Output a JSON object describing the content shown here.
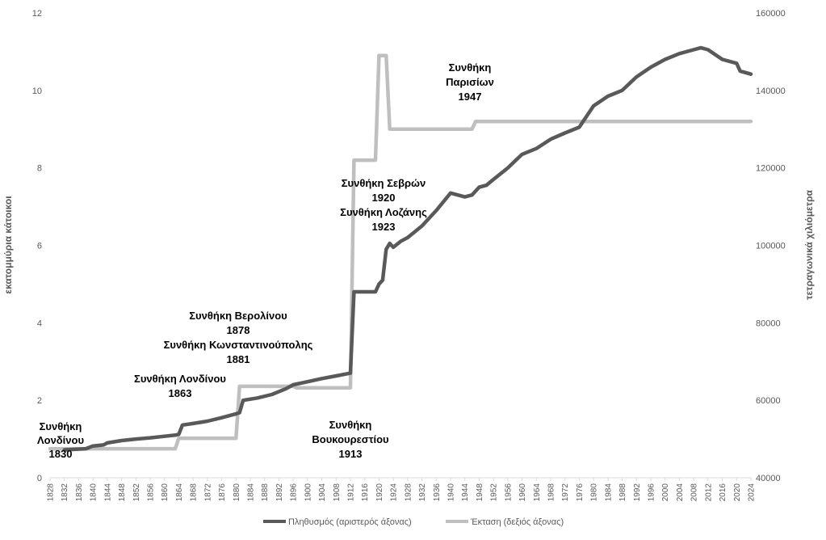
{
  "chart_data": {
    "type": "line",
    "title": "",
    "ylabel_left": "εκατομμύρια κάτοικοι",
    "ylabel_right": "τετραγωνικά χιλιόμετρα",
    "ylim_left": [
      0,
      12
    ],
    "ylim_right": [
      40000,
      160000
    ],
    "yticks_left": [
      "0",
      "2",
      "4",
      "6",
      "8",
      "10",
      "12"
    ],
    "yticks_right": [
      "40000",
      "60000",
      "80000",
      "100000",
      "120000",
      "140000",
      "160000"
    ],
    "xlim": [
      1828,
      2024
    ],
    "xticks": [
      "1828",
      "1832",
      "1836",
      "1840",
      "1844",
      "1848",
      "1852",
      "1856",
      "1860",
      "1864",
      "1868",
      "1872",
      "1876",
      "1880",
      "1884",
      "1888",
      "1892",
      "1896",
      "1900",
      "1904",
      "1908",
      "1912",
      "1916",
      "1920",
      "1924",
      "1928",
      "1932",
      "1936",
      "1940",
      "1944",
      "1948",
      "1952",
      "1956",
      "1960",
      "1964",
      "1968",
      "1972",
      "1976",
      "1980",
      "1984",
      "1988",
      "1992",
      "1996",
      "2000",
      "2004",
      "2008",
      "2012",
      "2016",
      "2020",
      "2024"
    ],
    "legend_position": "bottom",
    "grid": false,
    "series": [
      {
        "name": "Πληθυσμός (αριστερός άξονας)",
        "axis": "left",
        "color": "#595959",
        "points": [
          [
            1832,
            0.72
          ],
          [
            1838,
            0.75
          ],
          [
            1840,
            0.82
          ],
          [
            1843,
            0.85
          ],
          [
            1844,
            0.9
          ],
          [
            1848,
            0.96
          ],
          [
            1852,
            1.0
          ],
          [
            1856,
            1.03
          ],
          [
            1860,
            1.07
          ],
          [
            1863,
            1.1
          ],
          [
            1864,
            1.12
          ],
          [
            1865,
            1.36
          ],
          [
            1868,
            1.4
          ],
          [
            1872,
            1.46
          ],
          [
            1876,
            1.55
          ],
          [
            1880,
            1.65
          ],
          [
            1881,
            1.68
          ],
          [
            1882,
            2.0
          ],
          [
            1886,
            2.06
          ],
          [
            1890,
            2.15
          ],
          [
            1894,
            2.3
          ],
          [
            1896,
            2.4
          ],
          [
            1900,
            2.48
          ],
          [
            1904,
            2.56
          ],
          [
            1908,
            2.63
          ],
          [
            1912,
            2.7
          ],
          [
            1913,
            4.8
          ],
          [
            1919,
            4.8
          ],
          [
            1920,
            5.0
          ],
          [
            1921,
            5.1
          ],
          [
            1922,
            5.9
          ],
          [
            1923,
            6.05
          ],
          [
            1924,
            5.95
          ],
          [
            1926,
            6.1
          ],
          [
            1928,
            6.2
          ],
          [
            1932,
            6.5
          ],
          [
            1936,
            6.9
          ],
          [
            1940,
            7.35
          ],
          [
            1942,
            7.3
          ],
          [
            1944,
            7.25
          ],
          [
            1946,
            7.3
          ],
          [
            1948,
            7.5
          ],
          [
            1950,
            7.55
          ],
          [
            1952,
            7.7
          ],
          [
            1956,
            8.0
          ],
          [
            1960,
            8.35
          ],
          [
            1964,
            8.5
          ],
          [
            1968,
            8.74
          ],
          [
            1972,
            8.9
          ],
          [
            1976,
            9.05
          ],
          [
            1980,
            9.6
          ],
          [
            1984,
            9.85
          ],
          [
            1988,
            10.0
          ],
          [
            1992,
            10.35
          ],
          [
            1996,
            10.6
          ],
          [
            2000,
            10.8
          ],
          [
            2004,
            10.95
          ],
          [
            2008,
            11.05
          ],
          [
            2010,
            11.1
          ],
          [
            2012,
            11.05
          ],
          [
            2016,
            10.8
          ],
          [
            2020,
            10.7
          ],
          [
            2021,
            10.5
          ],
          [
            2024,
            10.42
          ]
        ]
      },
      {
        "name": "Έκταση (δεξιός άξονας)",
        "axis": "right",
        "color": "#bfbfbf",
        "points": [
          [
            1828,
            47500
          ],
          [
            1863,
            47500
          ],
          [
            1864,
            50200
          ],
          [
            1880,
            50200
          ],
          [
            1881,
            63600
          ],
          [
            1896,
            63600
          ],
          [
            1897,
            63200
          ],
          [
            1912,
            63200
          ],
          [
            1913,
            122000
          ],
          [
            1919,
            122000
          ],
          [
            1920,
            149000
          ],
          [
            1922,
            149000
          ],
          [
            1923,
            130000
          ],
          [
            1946,
            130000
          ],
          [
            1947,
            132000
          ],
          [
            2024,
            132000
          ]
        ]
      }
    ],
    "annotations": [
      {
        "lines": [
          "Συνθήκη",
          "Λονδίνου",
          "1830"
        ]
      },
      {
        "lines": [
          "Συνθήκη Λονδίνου",
          "1863"
        ]
      },
      {
        "lines": [
          "Συνθήκη Βερολίνου",
          "1878",
          "Συνθήκη Κωνσταντινούπολης",
          "1881"
        ]
      },
      {
        "lines": [
          "Συνθήκη",
          "Βουκουρεστίου",
          "1913"
        ]
      },
      {
        "lines": [
          "Συνθήκη Σεβρών",
          "1920",
          "Συνθήκη Λοζάνης",
          "1923"
        ]
      },
      {
        "lines": [
          "Συνθήκη",
          "Παρισίων",
          "1947"
        ]
      }
    ]
  }
}
